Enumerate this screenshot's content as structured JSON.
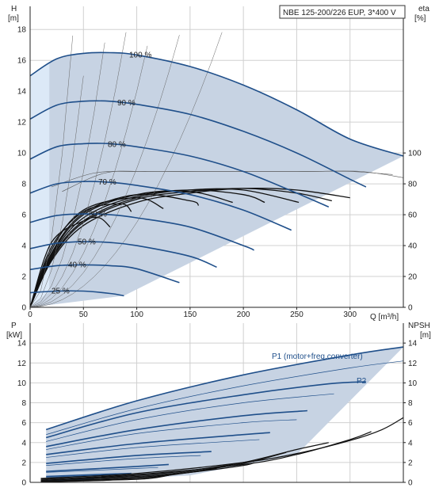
{
  "chart_data": [
    {
      "type": "line",
      "title": "NBE 125-200/226 EUP, 3*400 V",
      "y_left_label": "H",
      "y_left_unit": "[m]",
      "y_right_label": "eta",
      "y_right_unit": "[%]",
      "x_label": "Q [m³/h]",
      "x_ticks": [
        "0",
        "50",
        "100",
        "150",
        "200",
        "250",
        "300"
      ],
      "y_left_ticks": [
        "0",
        "2",
        "4",
        "6",
        "8",
        "10",
        "12",
        "14",
        "16",
        "18"
      ],
      "y_right_ticks": [
        "0",
        "20",
        "40",
        "60",
        "80",
        "100"
      ],
      "xlim": [
        0,
        350
      ],
      "ylim_left": [
        0,
        19.5
      ],
      "ylim_right": [
        0,
        195
      ],
      "grid": true,
      "head_curves": [
        {
          "name": "100 %",
          "x": [
            0,
            25,
            50,
            75,
            100,
            150,
            200,
            250,
            300,
            350
          ],
          "y": [
            15.0,
            16.1,
            16.45,
            16.5,
            16.35,
            15.6,
            14.4,
            12.8,
            10.9,
            9.8
          ]
        },
        {
          "name": "90 %",
          "x": [
            0,
            25,
            50,
            75,
            100,
            150,
            200,
            250,
            300,
            315
          ],
          "y": [
            12.2,
            13.1,
            13.35,
            13.35,
            13.15,
            12.5,
            11.4,
            10.0,
            8.3,
            7.8
          ]
        },
        {
          "name": "80 %",
          "x": [
            0,
            25,
            50,
            75,
            100,
            150,
            200,
            250,
            280
          ],
          "y": [
            9.6,
            10.4,
            10.6,
            10.6,
            10.4,
            9.8,
            8.8,
            7.4,
            6.5
          ]
        },
        {
          "name": "70 %",
          "x": [
            0,
            25,
            50,
            75,
            100,
            150,
            200,
            245
          ],
          "y": [
            7.4,
            8.0,
            8.15,
            8.1,
            7.9,
            7.3,
            6.3,
            5.0
          ]
        },
        {
          "name": "60 %",
          "x": [
            0,
            25,
            50,
            75,
            100,
            150,
            200,
            210
          ],
          "y": [
            5.5,
            5.95,
            6.05,
            6.0,
            5.8,
            5.2,
            4.0,
            3.7
          ]
        },
        {
          "name": "50 %",
          "x": [
            0,
            25,
            50,
            75,
            100,
            150,
            175
          ],
          "y": [
            3.8,
            4.15,
            4.25,
            4.2,
            4.0,
            3.3,
            2.6
          ]
        },
        {
          "name": "40 %",
          "x": [
            0,
            25,
            50,
            75,
            100,
            140
          ],
          "y": [
            2.45,
            2.7,
            2.75,
            2.7,
            2.5,
            1.6
          ]
        },
        {
          "name": "25 %",
          "x": [
            0,
            25,
            50,
            75,
            88
          ],
          "y": [
            0.95,
            1.05,
            1.05,
            0.9,
            0.75
          ]
        }
      ],
      "efficiency_curves": [
        {
          "x": [
            0,
            20,
            50,
            100,
            150,
            200,
            250,
            300
          ],
          "y": [
            0,
            30,
            53,
            68,
            74,
            77,
            76,
            71
          ]
        },
        {
          "x": [
            0,
            20,
            50,
            100,
            150,
            200,
            250,
            283
          ],
          "y": [
            0,
            31,
            55,
            70,
            75,
            77,
            74,
            69
          ]
        },
        {
          "x": [
            0,
            20,
            50,
            100,
            150,
            200,
            252
          ],
          "y": [
            0,
            32,
            56,
            71,
            76,
            76,
            68
          ]
        },
        {
          "x": [
            0,
            20,
            50,
            100,
            150,
            200,
            220
          ],
          "y": [
            0,
            33,
            58,
            72,
            76,
            73,
            68
          ]
        },
        {
          "x": [
            0,
            20,
            50,
            100,
            150,
            190
          ],
          "y": [
            0,
            34,
            60,
            73,
            75,
            68
          ]
        },
        {
          "x": [
            0,
            20,
            50,
            100,
            150,
            158
          ],
          "y": [
            0,
            35,
            61,
            73,
            69,
            66
          ]
        },
        {
          "x": [
            0,
            20,
            50,
            100,
            125
          ],
          "y": [
            0,
            37,
            63,
            71,
            64
          ]
        },
        {
          "x": [
            0,
            20,
            50,
            85,
            95
          ],
          "y": [
            0,
            39,
            62,
            67,
            62
          ]
        },
        {
          "x": [
            0,
            20,
            50,
            65,
            75
          ],
          "y": [
            0,
            42,
            56,
            58,
            52
          ]
        }
      ],
      "efficiency_dashed": [
        {
          "x": [
            20,
            60,
            100,
            150,
            200,
            250,
            300,
            340
          ],
          "y": [
            78,
            87,
            88,
            88,
            88,
            88,
            88,
            86
          ]
        },
        {
          "x": [
            30,
            70,
            110,
            160,
            210,
            260,
            310,
            350
          ],
          "y": [
            75,
            87,
            88,
            88,
            88,
            88,
            88,
            84
          ]
        }
      ]
    },
    {
      "type": "line",
      "y_left_label": "P",
      "y_left_unit": "[kW]",
      "y_right_label": "NPSH",
      "y_right_unit": "[m]",
      "y_left_ticks": [
        "0",
        "2",
        "4",
        "6",
        "8",
        "10",
        "12",
        "14"
      ],
      "y_right_ticks": [
        "0",
        "2",
        "4",
        "6",
        "8",
        "10",
        "12",
        "14"
      ],
      "xlim": [
        0,
        350
      ],
      "ylim": [
        0,
        16
      ],
      "grid": true,
      "annotations": [
        "P1 (motor+freq.converter)",
        "P2"
      ],
      "power_p1_curves": [
        {
          "x": [
            15,
            100,
            200,
            300,
            350
          ],
          "y": [
            5.3,
            8.2,
            10.8,
            12.8,
            13.6
          ]
        },
        {
          "x": [
            15,
            100,
            200,
            280,
            315
          ],
          "y": [
            4.5,
            7.0,
            8.8,
            9.9,
            10.1
          ]
        },
        {
          "x": [
            15,
            100,
            200,
            260
          ],
          "y": [
            3.6,
            5.3,
            6.7,
            7.2
          ]
        },
        {
          "x": [
            15,
            100,
            200,
            225
          ],
          "y": [
            2.8,
            3.9,
            4.8,
            5.0
          ]
        },
        {
          "x": [
            15,
            100,
            170
          ],
          "y": [
            1.9,
            2.7,
            3.1
          ]
        },
        {
          "x": [
            15,
            100,
            130
          ],
          "y": [
            1.1,
            1.6,
            1.8
          ]
        },
        {
          "x": [
            15,
            80,
            95
          ],
          "y": [
            0.6,
            0.85,
            0.9
          ]
        },
        {
          "x": [
            15,
            60
          ],
          "y": [
            0.2,
            0.35
          ]
        }
      ],
      "power_p2_curves": [
        {
          "x": [
            15,
            100,
            200,
            300,
            350
          ],
          "y": [
            4.8,
            7.4,
            9.7,
            11.5,
            12.2
          ]
        },
        {
          "x": [
            15,
            100,
            200,
            285
          ],
          "y": [
            4.1,
            6.3,
            8.0,
            8.9
          ]
        },
        {
          "x": [
            15,
            100,
            200,
            250
          ],
          "y": [
            3.3,
            4.9,
            6.0,
            6.3
          ]
        },
        {
          "x": [
            15,
            100,
            200,
            215
          ],
          "y": [
            2.5,
            3.5,
            4.2,
            4.3
          ]
        },
        {
          "x": [
            15,
            100,
            160
          ],
          "y": [
            1.7,
            2.4,
            2.7
          ]
        },
        {
          "x": [
            15,
            100,
            120
          ],
          "y": [
            1.0,
            1.4,
            1.5
          ]
        },
        {
          "x": [
            15,
            75,
            90
          ],
          "y": [
            0.5,
            0.75,
            0.8
          ]
        }
      ],
      "npsh_curves": [
        {
          "x": [
            10,
            100,
            200,
            250,
            300,
            330,
            350
          ],
          "y": [
            0.4,
            0.9,
            2.0,
            2.9,
            4.2,
            5.3,
            6.5
          ]
        },
        {
          "x": [
            10,
            100,
            200,
            250,
            300,
            320
          ],
          "y": [
            0.3,
            0.8,
            1.8,
            2.8,
            4.3,
            5.1
          ]
        },
        {
          "x": [
            10,
            100,
            150,
            200,
            250,
            280
          ],
          "y": [
            0.2,
            0.7,
            1.2,
            2.0,
            3.3,
            4.0
          ]
        },
        {
          "x": [
            10,
            100,
            150,
            200,
            240
          ],
          "y": [
            0.2,
            0.6,
            1.1,
            1.9,
            3.0
          ]
        },
        {
          "x": [
            10,
            100,
            150,
            200,
            210
          ],
          "y": [
            0.1,
            0.5,
            1.0,
            1.7,
            2.0
          ]
        },
        {
          "x": [
            10,
            100,
            150,
            175
          ],
          "y": [
            0.1,
            0.4,
            1.0,
            1.4
          ]
        },
        {
          "x": [
            10,
            100,
            130
          ],
          "y": [
            0.1,
            0.3,
            0.7
          ]
        },
        {
          "x": [
            10,
            70,
            90
          ],
          "y": [
            0.05,
            0.2,
            0.4
          ]
        }
      ]
    }
  ],
  "colors": {
    "curve_blue": "#1f4f8a",
    "area_fill": "#c7d3e3",
    "light_fill": "#dce9f7",
    "black": "#111111",
    "grid": "#d0d0d0"
  }
}
